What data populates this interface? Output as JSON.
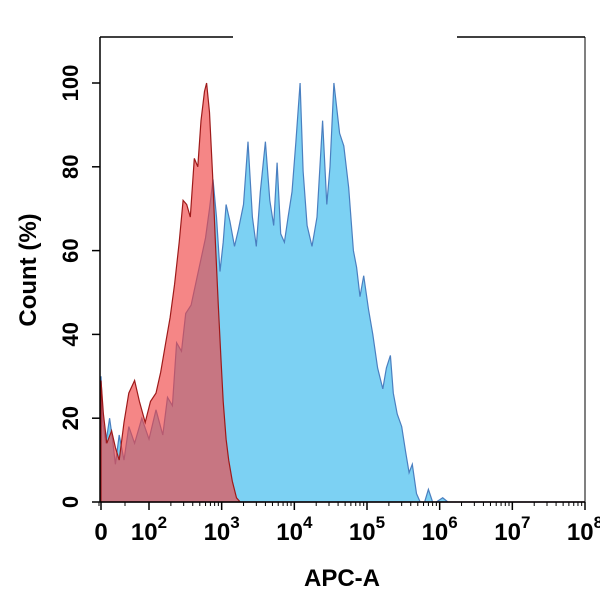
{
  "chart_data": {
    "type": "area",
    "xlabel": "APC-A",
    "ylabel": "Count (%)",
    "xscale": "biexponential (log above 10^2)",
    "xlim": [
      0,
      100000000
    ],
    "ylim": [
      0,
      100
    ],
    "y_ticks": [
      0,
      20,
      40,
      60,
      80,
      100
    ],
    "x_tick_labels": [
      {
        "base": "0",
        "exp": ""
      },
      {
        "base": "10",
        "exp": "2"
      },
      {
        "base": "10",
        "exp": "3"
      },
      {
        "base": "10",
        "exp": "4"
      },
      {
        "base": "10",
        "exp": "5"
      },
      {
        "base": "10",
        "exp": "6"
      },
      {
        "base": "10",
        "exp": "7"
      },
      {
        "base": "10",
        "exp": "8"
      }
    ],
    "grid": false,
    "series": [
      {
        "color": "#5bc6f0",
        "stroke": "#4a7fc0",
        "points": [
          [
            0,
            30
          ],
          [
            4,
            19
          ],
          [
            10,
            14
          ],
          [
            18,
            20
          ],
          [
            24,
            15
          ],
          [
            30,
            9
          ],
          [
            38,
            16
          ],
          [
            48,
            10
          ],
          [
            58,
            18
          ],
          [
            70,
            14
          ],
          [
            85,
            20
          ],
          [
            100,
            15
          ],
          [
            125,
            22
          ],
          [
            155,
            16
          ],
          [
            180,
            25
          ],
          [
            210,
            23
          ],
          [
            240,
            38
          ],
          [
            280,
            36
          ],
          [
            320,
            45
          ],
          [
            380,
            47
          ],
          [
            450,
            53
          ],
          [
            520,
            58
          ],
          [
            600,
            63
          ],
          [
            680,
            70
          ],
          [
            760,
            77
          ],
          [
            850,
            68
          ],
          [
            950,
            55
          ],
          [
            1050,
            62
          ],
          [
            1150,
            71
          ],
          [
            1300,
            67
          ],
          [
            1500,
            61
          ],
          [
            1700,
            65
          ],
          [
            2000,
            71
          ],
          [
            2300,
            86
          ],
          [
            2650,
            68
          ],
          [
            3000,
            61
          ],
          [
            3400,
            74
          ],
          [
            4000,
            86
          ],
          [
            4600,
            72
          ],
          [
            5200,
            66
          ],
          [
            5800,
            81
          ],
          [
            6500,
            64
          ],
          [
            7300,
            62
          ],
          [
            8200,
            68
          ],
          [
            9300,
            74
          ],
          [
            10500,
            86
          ],
          [
            12000,
            100
          ],
          [
            13200,
            79
          ],
          [
            15000,
            66
          ],
          [
            17500,
            61
          ],
          [
            20500,
            68
          ],
          [
            24500,
            91
          ],
          [
            28000,
            71
          ],
          [
            31000,
            80
          ],
          [
            35000,
            100
          ],
          [
            42000,
            88
          ],
          [
            48000,
            85
          ],
          [
            56000,
            75
          ],
          [
            65000,
            60
          ],
          [
            72000,
            56
          ],
          [
            80000,
            49
          ],
          [
            90000,
            54
          ],
          [
            105000,
            46
          ],
          [
            120000,
            40
          ],
          [
            140000,
            32
          ],
          [
            165000,
            27
          ],
          [
            185000,
            32
          ],
          [
            210000,
            35
          ],
          [
            230000,
            26
          ],
          [
            260000,
            21
          ],
          [
            300000,
            18
          ],
          [
            340000,
            12
          ],
          [
            380000,
            7
          ],
          [
            420000,
            9
          ],
          [
            480000,
            2
          ],
          [
            540000,
            0
          ],
          [
            620000,
            0
          ],
          [
            700000,
            3
          ],
          [
            800000,
            0
          ],
          [
            900000,
            0
          ],
          [
            1100000,
            1
          ],
          [
            1300000,
            0
          ],
          [
            100000000,
            0
          ]
        ]
      },
      {
        "color": "#f04545",
        "stroke": "#9e1a1a",
        "points": [
          [
            0,
            29
          ],
          [
            5,
            21
          ],
          [
            12,
            14
          ],
          [
            22,
            17
          ],
          [
            30,
            13
          ],
          [
            38,
            10
          ],
          [
            48,
            19
          ],
          [
            58,
            26
          ],
          [
            70,
            29
          ],
          [
            80,
            24
          ],
          [
            92,
            19
          ],
          [
            105,
            24
          ],
          [
            125,
            26
          ],
          [
            145,
            31
          ],
          [
            170,
            38
          ],
          [
            195,
            44
          ],
          [
            225,
            52
          ],
          [
            260,
            62
          ],
          [
            295,
            72
          ],
          [
            330,
            71
          ],
          [
            370,
            68
          ],
          [
            420,
            82
          ],
          [
            470,
            80
          ],
          [
            520,
            91
          ],
          [
            580,
            98
          ],
          [
            620,
            100
          ],
          [
            680,
            93
          ],
          [
            750,
            78
          ],
          [
            820,
            62
          ],
          [
            900,
            47
          ],
          [
            980,
            34
          ],
          [
            1050,
            24
          ],
          [
            1150,
            15
          ],
          [
            1250,
            10
          ],
          [
            1400,
            5
          ],
          [
            1600,
            1
          ],
          [
            1800,
            0
          ],
          [
            100000000,
            0
          ]
        ]
      }
    ]
  }
}
